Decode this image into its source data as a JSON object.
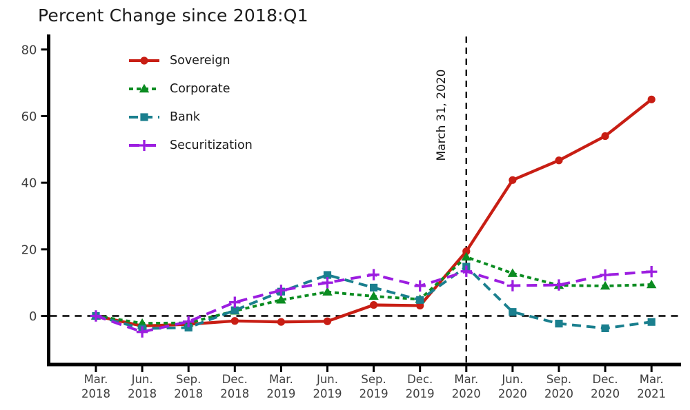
{
  "chart_data": {
    "type": "line",
    "title": "Percent Change since 2018:Q1",
    "xlabel": "",
    "ylabel": "",
    "categories": [
      "Mar. 2018",
      "Jun. 2018",
      "Sep. 2018",
      "Dec. 2018",
      "Mar. 2019",
      "Jun. 2019",
      "Sep. 2019",
      "Dec. 2019",
      "Mar. 2020",
      "Jun. 2020",
      "Sep. 2020",
      "Dec. 2020",
      "Mar. 2021"
    ],
    "series": [
      {
        "name": "Sovereign",
        "color": "#c81e14",
        "marker": "circle",
        "line_style": "solid",
        "values": [
          0,
          -3.0,
          -2.5,
          -1.5,
          -1.8,
          -1.6,
          3.3,
          3.1,
          19.4,
          40.8,
          46.7,
          54.0,
          65.0
        ]
      },
      {
        "name": "Corporate",
        "color": "#0b8c21",
        "marker": "triangle",
        "line_style": "dotted",
        "values": [
          0,
          -2.2,
          -2.1,
          1.5,
          4.8,
          7.2,
          5.9,
          5.0,
          17.7,
          12.8,
          9.2,
          9.0,
          9.4
        ]
      },
      {
        "name": "Bank",
        "color": "#1a7f8e",
        "marker": "square",
        "line_style": "dashed",
        "values": [
          0,
          -3.8,
          -3.5,
          1.7,
          7.3,
          12.3,
          8.5,
          4.8,
          14.8,
          1.2,
          -2.3,
          -3.7,
          -1.8
        ]
      },
      {
        "name": "Securitization",
        "color": "#9c1ee0",
        "marker": "plus",
        "line_style": "long-dash",
        "values": [
          0,
          -4.8,
          -1.7,
          4.1,
          7.7,
          10.0,
          12.4,
          9.0,
          13.4,
          9.1,
          9.3,
          12.3,
          13.3
        ]
      }
    ],
    "yticks": [
      0,
      20,
      40,
      60,
      80
    ],
    "ylim": [
      -14.5,
      84.5
    ],
    "grid": false,
    "legend_position": "upper left inside",
    "reference_lines": {
      "horizontal": {
        "y": 0,
        "style": "dashed",
        "color": "#000000"
      },
      "vertical": {
        "at_category": "Mar. 2020",
        "category_index": 8,
        "style": "dashed",
        "color": "#000000",
        "label": "March 31, 2020"
      }
    },
    "axis_color": "#000000",
    "tick_label_color": "#3f3f3f",
    "title_color": "#1c1c1c"
  }
}
